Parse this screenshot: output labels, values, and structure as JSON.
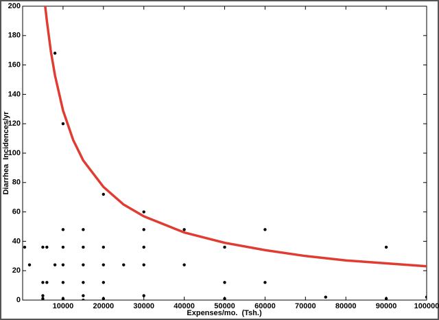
{
  "chart_data": {
    "type": "scatter",
    "x_label": "Expenses/mo.  (Tsh.)",
    "y_label": "Diarrhea  Incidences/yr",
    "xlim": [
      0,
      100000
    ],
    "ylim": [
      0,
      200
    ],
    "xticks": [
      10000,
      20000,
      30000,
      40000,
      50000,
      60000,
      70000,
      80000,
      90000,
      100000
    ],
    "yticks": [
      0,
      20,
      40,
      60,
      80,
      100,
      120,
      140,
      160,
      180,
      200
    ],
    "series": [
      {
        "type": "scatter",
        "color": "#000000",
        "x": [
          500,
          1700,
          5000,
          5000,
          5000,
          5000,
          5000,
          6000,
          6000,
          8000,
          8000,
          10000,
          10000,
          10000,
          10000,
          10000,
          10000,
          10000,
          15000,
          15000,
          15000,
          15000,
          15000,
          15000,
          20000,
          20000,
          20000,
          20000,
          20000,
          25000,
          30000,
          30000,
          30000,
          30000,
          30000,
          40000,
          40000,
          50000,
          50000,
          50000,
          60000,
          60000,
          75000,
          90000,
          90000,
          100000
        ],
        "values": [
          36,
          24,
          0,
          1,
          3,
          12,
          36,
          36,
          12,
          168,
          24,
          120,
          48,
          36,
          24,
          12,
          1,
          0,
          48,
          36,
          24,
          12,
          3,
          0,
          72,
          36,
          24,
          12,
          1,
          24,
          60,
          48,
          36,
          24,
          3,
          48,
          24,
          36,
          12,
          1,
          48,
          12,
          2,
          36,
          1,
          2
        ]
      },
      {
        "type": "line",
        "color": "#e03c31",
        "x": [
          5500,
          6000,
          7000,
          8000,
          10000,
          12500,
          15000,
          20000,
          25000,
          30000,
          40000,
          50000,
          60000,
          70000,
          80000,
          90000,
          100000
        ],
        "values": [
          202,
          190,
          169,
          153,
          129,
          109,
          95,
          77,
          65,
          57,
          46,
          39,
          34,
          30,
          27,
          25,
          23
        ]
      }
    ]
  }
}
